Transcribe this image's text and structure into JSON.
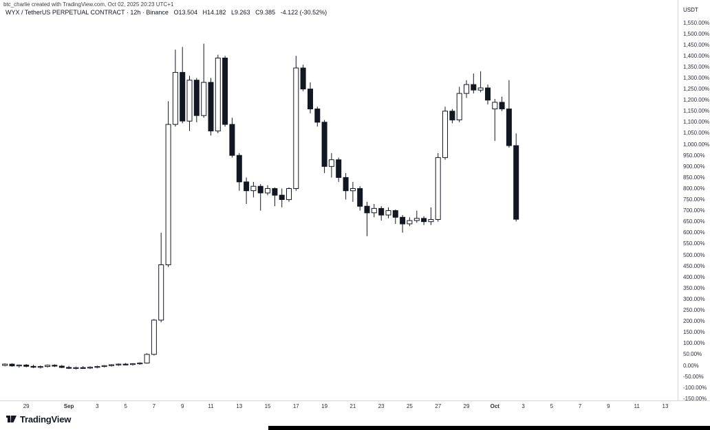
{
  "header": {
    "attribution": "btc_charlie created with TradingView.com, Oct 02, 2025 20:23 UTC+1",
    "symbol": "WYX / TetherUS PERPETUAL CONTRACT · 12h · Binance",
    "ohlc": {
      "o": "O13.504",
      "h": "H14.182",
      "l": "L9.263",
      "c": "C9.385",
      "change": "-4.122 (-30.52%)"
    }
  },
  "price_axis": {
    "currency": "USDT"
  },
  "footer": {
    "logo_text": "TradingView"
  },
  "colors": {
    "up_body": "#ffffff",
    "down_body": "#131722",
    "wick": "#131722",
    "axis_line": "#d1d4dc"
  },
  "chart_data": {
    "type": "candlestick",
    "title": "WYX / TetherUS PERPETUAL CONTRACT",
    "interval": "12h",
    "exchange": "Binance",
    "unit": "percent_change",
    "ylabel": "% change",
    "ylim": [
      -150,
      1550
    ],
    "grid": false,
    "y_ticks": [
      1550,
      1500,
      1450,
      1400,
      1350,
      1300,
      1250,
      1200,
      1150,
      1100,
      1050,
      1000,
      950,
      900,
      850,
      800,
      750,
      700,
      650,
      600,
      550,
      500,
      450,
      400,
      350,
      300,
      250,
      200,
      150,
      100,
      50,
      0,
      -50,
      -100,
      -150
    ],
    "x_ticks": [
      {
        "label": "29",
        "i": 3
      },
      {
        "label": "Sep",
        "i": 9
      },
      {
        "label": "3",
        "i": 13
      },
      {
        "label": "5",
        "i": 17
      },
      {
        "label": "7",
        "i": 21
      },
      {
        "label": "9",
        "i": 25
      },
      {
        "label": "11",
        "i": 29
      },
      {
        "label": "13",
        "i": 33
      },
      {
        "label": "15",
        "i": 37
      },
      {
        "label": "17",
        "i": 41
      },
      {
        "label": "19",
        "i": 45
      },
      {
        "label": "21",
        "i": 49
      },
      {
        "label": "23",
        "i": 53
      },
      {
        "label": "25",
        "i": 57
      },
      {
        "label": "27",
        "i": 61
      },
      {
        "label": "29",
        "i": 65
      },
      {
        "label": "Oct",
        "i": 69
      },
      {
        "label": "3",
        "i": 73
      },
      {
        "label": "5",
        "i": 77
      },
      {
        "label": "7",
        "i": 81
      },
      {
        "label": "9",
        "i": 85
      },
      {
        "label": "11",
        "i": 89
      },
      {
        "label": "13",
        "i": 93
      }
    ],
    "ohlc_current": {
      "open": 13.504,
      "high": 14.182,
      "low": 9.263,
      "close": 9.385,
      "change": -4.122,
      "change_pct": -30.52
    },
    "candles": [
      [
        0,
        9,
        -4,
        6
      ],
      [
        6,
        10,
        -6,
        -2
      ],
      [
        -2,
        4,
        -10,
        2
      ],
      [
        2,
        6,
        -8,
        -4
      ],
      [
        -4,
        3,
        -12,
        -8
      ],
      [
        -8,
        0,
        -14,
        -5
      ],
      [
        -5,
        4,
        -9,
        1
      ],
      [
        1,
        5,
        -7,
        -3
      ],
      [
        -3,
        2,
        -12,
        -9
      ],
      [
        -9,
        -2,
        -16,
        -13
      ],
      [
        -13,
        -6,
        -18,
        -10
      ],
      [
        -10,
        -3,
        -15,
        -12
      ],
      [
        -12,
        -4,
        -16,
        -8
      ],
      [
        -8,
        -1,
        -13,
        -5
      ],
      [
        -5,
        2,
        -9,
        -1
      ],
      [
        -1,
        6,
        -5,
        3
      ],
      [
        3,
        9,
        -2,
        6
      ],
      [
        6,
        11,
        1,
        4
      ],
      [
        4,
        10,
        -1,
        8
      ],
      [
        8,
        14,
        3,
        11
      ],
      [
        11,
        55,
        8,
        50
      ],
      [
        50,
        210,
        45,
        205
      ],
      [
        205,
        600,
        195,
        455
      ],
      [
        455,
        1195,
        445,
        1090
      ],
      [
        1090,
        1428,
        1080,
        1325
      ],
      [
        1325,
        1440,
        1095,
        1105
      ],
      [
        1105,
        1310,
        1060,
        1290
      ],
      [
        1290,
        1300,
        1100,
        1130
      ],
      [
        1130,
        1455,
        1120,
        1280
      ],
      [
        1280,
        1300,
        1040,
        1060
      ],
      [
        1060,
        1405,
        1050,
        1390
      ],
      [
        1390,
        1400,
        1080,
        1090
      ],
      [
        1090,
        1120,
        940,
        950
      ],
      [
        950,
        960,
        790,
        830
      ],
      [
        830,
        850,
        730,
        790
      ],
      [
        790,
        830,
        760,
        810
      ],
      [
        810,
        820,
        700,
        780
      ],
      [
        780,
        815,
        770,
        800
      ],
      [
        800,
        805,
        720,
        770
      ],
      [
        770,
        800,
        715,
        750
      ],
      [
        750,
        805,
        740,
        800
      ],
      [
        800,
        1400,
        790,
        1345
      ],
      [
        1345,
        1360,
        1240,
        1250
      ],
      [
        1250,
        1280,
        1140,
        1160
      ],
      [
        1160,
        1170,
        1080,
        1100
      ],
      [
        1100,
        1110,
        870,
        900
      ],
      [
        900,
        960,
        850,
        930
      ],
      [
        930,
        940,
        830,
        850
      ],
      [
        850,
        870,
        750,
        790
      ],
      [
        790,
        830,
        740,
        800
      ],
      [
        800,
        810,
        700,
        720
      ],
      [
        720,
        740,
        585,
        690
      ],
      [
        690,
        730,
        670,
        710
      ],
      [
        710,
        720,
        655,
        680
      ],
      [
        680,
        715,
        665,
        700
      ],
      [
        700,
        705,
        640,
        670
      ],
      [
        670,
        680,
        600,
        640
      ],
      [
        640,
        670,
        630,
        655
      ],
      [
        655,
        700,
        645,
        665
      ],
      [
        665,
        675,
        635,
        650
      ],
      [
        650,
        715,
        635,
        660
      ],
      [
        660,
        960,
        650,
        940
      ],
      [
        940,
        1170,
        930,
        1150
      ],
      [
        1150,
        1160,
        1095,
        1110
      ],
      [
        1110,
        1260,
        1100,
        1230
      ],
      [
        1230,
        1290,
        1210,
        1270
      ],
      [
        1270,
        1320,
        1230,
        1245
      ],
      [
        1245,
        1330,
        1235,
        1255
      ],
      [
        1255,
        1270,
        1180,
        1200
      ],
      [
        1160,
        1205,
        1015,
        1190
      ],
      [
        1190,
        1215,
        1150,
        1160
      ],
      [
        1160,
        1290,
        985,
        994
      ],
      [
        994,
        1049,
        651,
        661
      ]
    ]
  }
}
